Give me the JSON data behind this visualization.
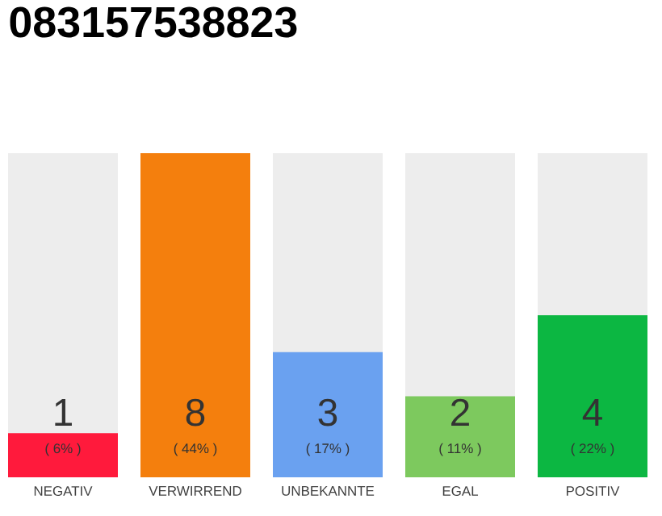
{
  "chart_data": {
    "type": "bar",
    "title": "083157538823",
    "categories": [
      "NEGATIV",
      "VERWIRREND",
      "UNBEKANNTE",
      "EGAL",
      "POSITIV"
    ],
    "values": [
      6,
      44,
      17,
      11,
      22
    ],
    "colors": [
      "#ff1a3c",
      "#f47f0d",
      "#6aa1f0",
      "#7dc95e",
      "#0cb742"
    ],
    "value_labels": [
      "( 6% )",
      "( 44% )",
      "( 17% )",
      "( 11% )",
      "( 22% )"
    ],
    "annotations": [
      "1",
      "8",
      "3",
      "2",
      "4"
    ],
    "tick_labels": "x"
  }
}
